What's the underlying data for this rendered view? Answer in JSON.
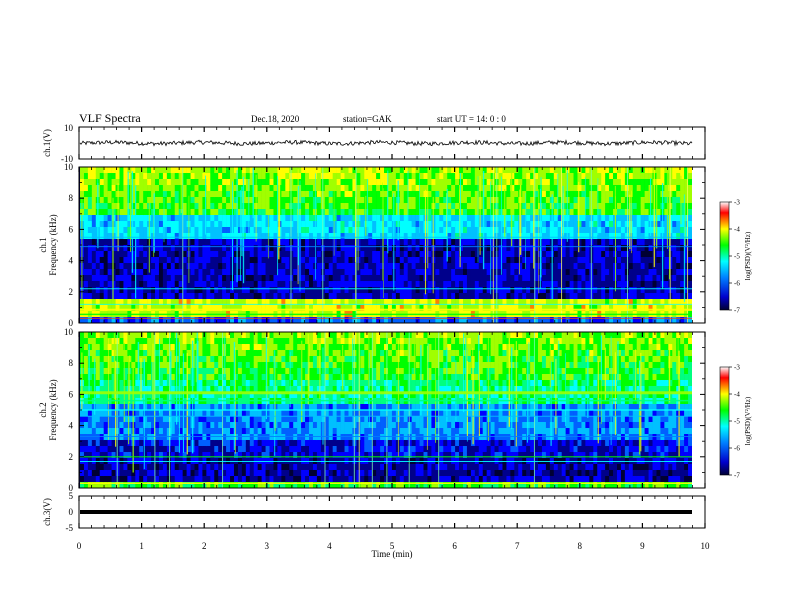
{
  "header": {
    "title": "VLF Spectra",
    "date": "Dec.18, 2020",
    "station": "station=GAK",
    "start": "start  UT =   14: 0  : 0"
  },
  "chart_data": [
    {
      "type": "line",
      "panel": "ch1-waveform",
      "ylabel": "ch.1(V)",
      "ylim": [
        -10,
        10
      ],
      "yticks": [
        "10",
        "-10"
      ],
      "series": [
        {
          "values_approx": "noise around 0 V, amplitude ~±1.5 V"
        }
      ]
    },
    {
      "type": "heatmap",
      "panel": "ch1-spectrogram",
      "ylabel_top": "ch.1",
      "ylabel": "Frequency (kHz)",
      "ylim": [
        0,
        10
      ],
      "yticks": [
        "0",
        "2",
        "4",
        "6",
        "8",
        "10"
      ],
      "colorbar": {
        "label": "log(PSD)(V²/Hz)",
        "range": [
          -7,
          -3
        ],
        "ticks": [
          "-3",
          "-4",
          "-5",
          "-6",
          "-7"
        ]
      }
    },
    {
      "type": "heatmap",
      "panel": "ch2-spectrogram",
      "ylabel_top": "ch.2",
      "ylabel": "Frequency (kHz)",
      "ylim": [
        0,
        10
      ],
      "yticks": [
        "0",
        "2",
        "4",
        "6",
        "8",
        "10"
      ],
      "colorbar": {
        "label": "log(PSD)(V²/Hz)",
        "range": [
          -7,
          -3
        ],
        "ticks": [
          "-3",
          "-4",
          "-5",
          "-6",
          "-7"
        ]
      }
    },
    {
      "type": "line",
      "panel": "ch3-waveform",
      "ylabel": "ch.3(V)",
      "ylim": [
        -5,
        5
      ],
      "yticks": [
        "5",
        "0",
        "-5"
      ],
      "series": [
        {
          "values_approx": "constant ~-1 V"
        }
      ]
    }
  ],
  "xaxis": {
    "label": "Time (min)",
    "range": [
      0,
      10
    ],
    "ticks": [
      "0",
      "1",
      "2",
      "3",
      "4",
      "5",
      "6",
      "7",
      "8",
      "9",
      "10"
    ]
  },
  "colors": {
    "colormap": [
      "#000033",
      "#0000ff",
      "#00ffff",
      "#00ff00",
      "#ffff00",
      "#ff0000",
      "#ffffff"
    ]
  }
}
